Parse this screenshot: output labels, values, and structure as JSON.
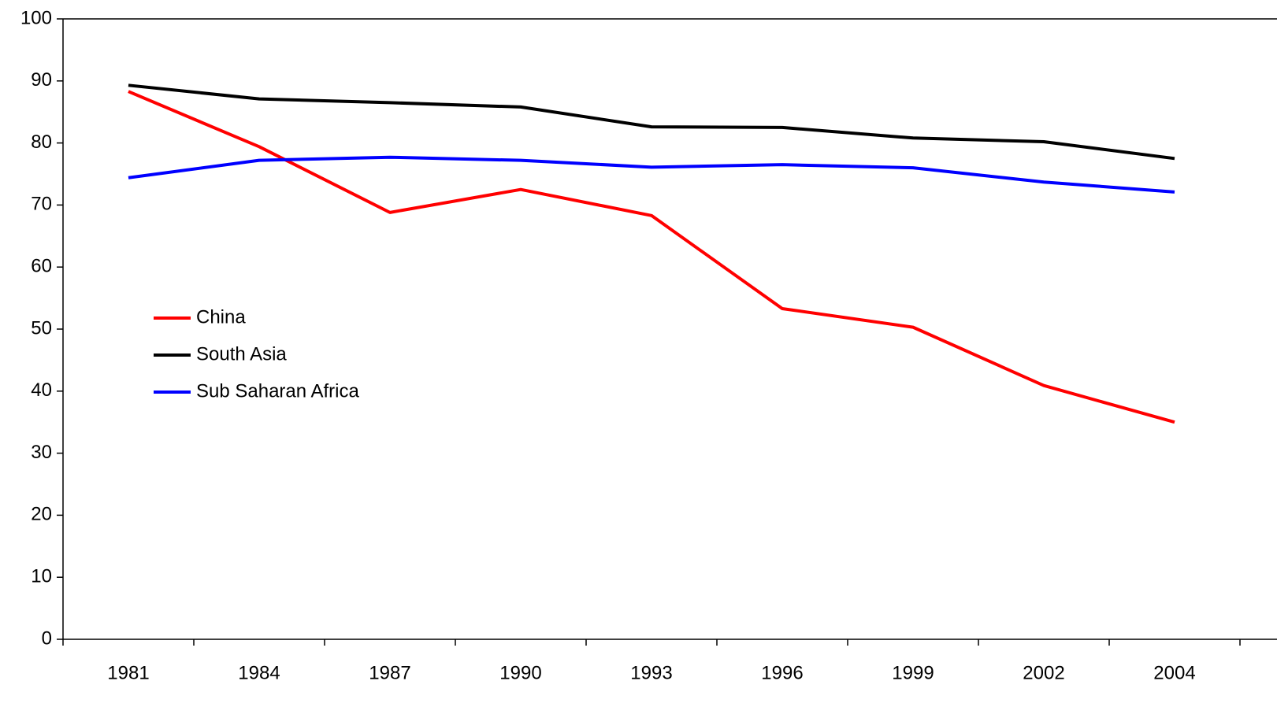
{
  "chart_data": {
    "type": "line",
    "categories": [
      "1981",
      "1984",
      "1987",
      "1990",
      "1993",
      "1996",
      "1999",
      "2002",
      "2004"
    ],
    "series": [
      {
        "name": "China",
        "color": "#ff0000",
        "values": [
          88.3,
          79.4,
          68.8,
          72.5,
          68.3,
          53.3,
          50.3,
          40.9,
          35.0
        ]
      },
      {
        "name": "South Asia",
        "color": "#000000",
        "values": [
          89.3,
          87.1,
          86.5,
          85.8,
          82.6,
          82.5,
          80.8,
          80.2,
          77.5
        ]
      },
      {
        "name": "Sub Saharan Africa",
        "color": "#0000ff",
        "values": [
          74.4,
          77.2,
          77.7,
          77.2,
          76.1,
          76.5,
          76.0,
          73.7,
          72.1
        ]
      }
    ],
    "ylim": [
      0,
      100
    ],
    "yticks": [
      0,
      10,
      20,
      30,
      40,
      50,
      60,
      70,
      80,
      90,
      100
    ],
    "grid": false,
    "legend": "left"
  }
}
